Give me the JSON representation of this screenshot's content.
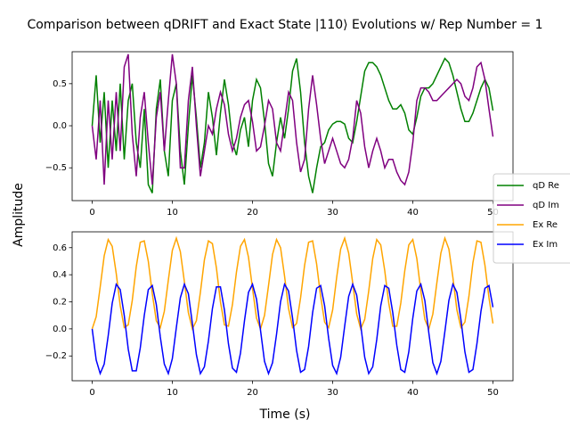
{
  "chart_data": [
    {
      "type": "line",
      "title": "Comparison between qDRIFT and Exact State |110⟩ Evolutions w/ Rep Number = 1",
      "ylabel": "Amplitude",
      "x": [
        0,
        0.5,
        1,
        1.5,
        2,
        2.5,
        3,
        3.5,
        4,
        4.5,
        5,
        5.5,
        6,
        6.5,
        7,
        7.5,
        8,
        8.5,
        9,
        9.5,
        10,
        10.5,
        11,
        11.5,
        12,
        12.5,
        13,
        13.5,
        14,
        14.5,
        15,
        15.5,
        16,
        16.5,
        17,
        17.5,
        18,
        18.5,
        19,
        19.5,
        20,
        20.5,
        21,
        21.5,
        22,
        22.5,
        23,
        23.5,
        24,
        24.5,
        25,
        25.5,
        26,
        26.5,
        27,
        27.5,
        28,
        28.5,
        29,
        29.5,
        30,
        30.5,
        31,
        31.5,
        32,
        32.5,
        33,
        33.5,
        34,
        34.5,
        35,
        35.5,
        36,
        36.5,
        37,
        37.5,
        38,
        38.5,
        39,
        39.5,
        40,
        40.5,
        41,
        41.5,
        42,
        42.5,
        43,
        43.5,
        44,
        44.5,
        45,
        45.5,
        46,
        46.5,
        47,
        47.5,
        48,
        48.5,
        49,
        49.5,
        50
      ],
      "series": [
        {
          "name": "qD Re",
          "color": "#008000",
          "values": [
            0,
            0.6,
            -0.2,
            0.4,
            -0.5,
            0.3,
            -0.3,
            0.5,
            -0.4,
            0.3,
            0.5,
            -0.2,
            -0.5,
            0.2,
            -0.7,
            -0.8,
            0.2,
            0.55,
            -0.3,
            -0.6,
            0.3,
            0.5,
            -0.3,
            -0.7,
            0,
            0.6,
            0.1,
            -0.5,
            -0.2,
            0.4,
            0.1,
            -0.35,
            0.15,
            0.55,
            0.25,
            -0.2,
            -0.35,
            -0.05,
            0.1,
            -0.25,
            0.3,
            0.55,
            0.45,
            0.05,
            -0.45,
            -0.6,
            -0.2,
            0.1,
            -0.15,
            0.2,
            0.65,
            0.8,
            0.4,
            -0.2,
            -0.6,
            -0.8,
            -0.5,
            -0.25,
            -0.2,
            -0.05,
            0.02,
            0.05,
            0.05,
            0.02,
            -0.15,
            -0.2,
            0.05,
            0.35,
            0.65,
            0.75,
            0.75,
            0.7,
            0.6,
            0.45,
            0.3,
            0.2,
            0.2,
            0.25,
            0.15,
            -0.05,
            -0.1,
            0.1,
            0.35,
            0.45,
            0.45,
            0.5,
            0.6,
            0.7,
            0.8,
            0.75,
            0.6,
            0.4,
            0.2,
            0.05,
            0.05,
            0.15,
            0.3,
            0.45,
            0.55,
            0.45,
            0.18
          ]
        },
        {
          "name": "qD Im",
          "color": "#800080",
          "values": [
            0,
            -0.4,
            0.3,
            -0.7,
            0.3,
            -0.4,
            0.4,
            -0.3,
            0.7,
            0.85,
            -0.1,
            -0.6,
            0.1,
            0.4,
            -0.2,
            -0.7,
            0.1,
            0.4,
            -0.3,
            0.3,
            0.85,
            0.5,
            -0.5,
            -0.5,
            0.3,
            0.7,
            0,
            -0.6,
            -0.3,
            0,
            -0.1,
            0.2,
            0.4,
            0.25,
            -0.1,
            -0.3,
            -0.15,
            0.1,
            0.25,
            0.3,
            0.05,
            -0.3,
            -0.25,
            0,
            0.3,
            0.2,
            -0.2,
            -0.3,
            0.05,
            0.4,
            0.3,
            -0.2,
            -0.55,
            -0.4,
            0.2,
            0.6,
            0.25,
            -0.15,
            -0.45,
            -0.3,
            -0.15,
            -0.3,
            -0.45,
            -0.5,
            -0.4,
            -0.15,
            0.3,
            0.15,
            -0.25,
            -0.5,
            -0.3,
            -0.15,
            -0.3,
            -0.5,
            -0.4,
            -0.4,
            -0.55,
            -0.65,
            -0.7,
            -0.55,
            -0.2,
            0.3,
            0.45,
            0.45,
            0.4,
            0.3,
            0.3,
            0.35,
            0.4,
            0.45,
            0.5,
            0.55,
            0.5,
            0.35,
            0.3,
            0.45,
            0.7,
            0.75,
            0.55,
            0.2,
            -0.13
          ]
        }
      ],
      "xlim": [
        -2.5,
        52.5
      ],
      "ylim": [
        -0.89,
        0.88
      ],
      "xticks": [
        0,
        10,
        20,
        30,
        40,
        50
      ],
      "yticks": [
        {
          "value": -0.5,
          "label": "−0.5"
        },
        {
          "value": 0,
          "label": "0.0"
        },
        0.5
      ]
    },
    {
      "type": "line",
      "xlabel": "Time (s)",
      "x": [
        0,
        0.5,
        1,
        1.5,
        2,
        2.5,
        3,
        3.5,
        4,
        4.5,
        5,
        5.5,
        6,
        6.5,
        7,
        7.5,
        8,
        8.5,
        9,
        9.5,
        10,
        10.5,
        11,
        11.5,
        12,
        12.5,
        13,
        13.5,
        14,
        14.5,
        15,
        15.5,
        16,
        16.5,
        17,
        17.5,
        18,
        18.5,
        19,
        19.5,
        20,
        20.5,
        21,
        21.5,
        22,
        22.5,
        23,
        23.5,
        24,
        24.5,
        25,
        25.5,
        26,
        26.5,
        27,
        27.5,
        28,
        28.5,
        29,
        29.5,
        30,
        30.5,
        31,
        31.5,
        32,
        32.5,
        33,
        33.5,
        34,
        34.5,
        35,
        35.5,
        36,
        36.5,
        37,
        37.5,
        38,
        38.5,
        39,
        39.5,
        40,
        40.5,
        41,
        41.5,
        42,
        42.5,
        43,
        43.5,
        44,
        44.5,
        45,
        45.5,
        46,
        46.5,
        47,
        47.5,
        48,
        48.5,
        49,
        49.5,
        50
      ],
      "series": [
        {
          "name": "Ex Re",
          "color": "#ffa500",
          "values": [
            0,
            0.09,
            0.31,
            0.54,
            0.66,
            0.61,
            0.41,
            0.17,
            0.01,
            0.03,
            0.21,
            0.46,
            0.64,
            0.65,
            0.5,
            0.26,
            0.06,
            0.01,
            0.13,
            0.36,
            0.58,
            0.67,
            0.57,
            0.35,
            0.12,
            0,
            0.06,
            0.27,
            0.51,
            0.65,
            0.63,
            0.45,
            0.2,
            0.03,
            0.02,
            0.18,
            0.42,
            0.61,
            0.66,
            0.53,
            0.3,
            0.08,
            0,
            0.1,
            0.32,
            0.55,
            0.66,
            0.6,
            0.39,
            0.15,
            0.01,
            0.04,
            0.23,
            0.47,
            0.64,
            0.65,
            0.48,
            0.24,
            0.05,
            0.01,
            0.14,
            0.38,
            0.59,
            0.67,
            0.56,
            0.34,
            0.11,
            0,
            0.07,
            0.28,
            0.52,
            0.66,
            0.62,
            0.43,
            0.19,
            0.02,
            0.02,
            0.19,
            0.43,
            0.62,
            0.66,
            0.52,
            0.28,
            0.07,
            0,
            0.11,
            0.34,
            0.56,
            0.67,
            0.59,
            0.38,
            0.14,
            0.01,
            0.05,
            0.24,
            0.49,
            0.65,
            0.64,
            0.47,
            0.23,
            0.04
          ]
        },
        {
          "name": "Ex Im",
          "color": "#0000ff",
          "values": [
            0,
            -0.23,
            -0.33,
            -0.26,
            -0.05,
            0.19,
            0.33,
            0.29,
            0.1,
            -0.15,
            -0.31,
            -0.31,
            -0.14,
            0.1,
            0.29,
            0.32,
            0.18,
            -0.06,
            -0.26,
            -0.33,
            -0.22,
            0.01,
            0.23,
            0.33,
            0.26,
            0.04,
            -0.19,
            -0.33,
            -0.28,
            -0.09,
            0.15,
            0.31,
            0.31,
            0.14,
            -0.11,
            -0.29,
            -0.32,
            -0.18,
            0.06,
            0.27,
            0.33,
            0.22,
            -0.01,
            -0.24,
            -0.33,
            -0.25,
            -0.04,
            0.2,
            0.33,
            0.28,
            0.08,
            -0.16,
            -0.32,
            -0.3,
            -0.13,
            0.12,
            0.3,
            0.32,
            0.17,
            -0.07,
            -0.27,
            -0.33,
            -0.21,
            0.02,
            0.24,
            0.33,
            0.25,
            0.03,
            -0.21,
            -0.33,
            -0.28,
            -0.08,
            0.17,
            0.32,
            0.3,
            0.12,
            -0.12,
            -0.3,
            -0.32,
            -0.17,
            0.08,
            0.28,
            0.33,
            0.21,
            -0.03,
            -0.25,
            -0.33,
            -0.24,
            -0.02,
            0.21,
            0.33,
            0.27,
            0.07,
            -0.17,
            -0.32,
            -0.3,
            -0.11,
            0.13,
            0.3,
            0.32,
            0.16
          ]
        }
      ],
      "xlim": [
        -2.5,
        52.5
      ],
      "ylim": [
        -0.383,
        0.717
      ],
      "xticks": [
        0,
        10,
        20,
        30,
        40,
        50
      ],
      "yticks": [
        {
          "value": -0.2,
          "label": "−0.2"
        },
        {
          "value": 0,
          "label": "0.0"
        },
        0.2,
        0.4,
        0.6
      ]
    }
  ]
}
